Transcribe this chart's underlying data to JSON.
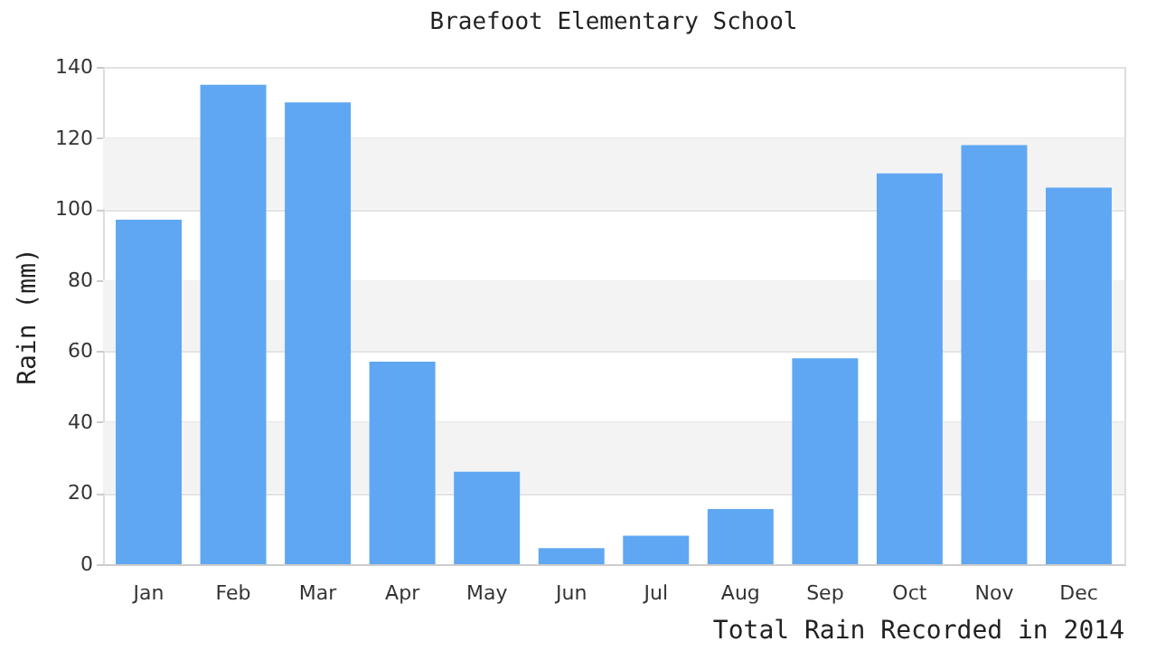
{
  "chart_data": {
    "type": "bar",
    "title": "Braefoot Elementary School",
    "ylabel": "Rain (mm)",
    "annotations": [
      "Total Rain Recorded in 2014"
    ],
    "categories": [
      "Jan",
      "Feb",
      "Mar",
      "Apr",
      "May",
      "Jun",
      "Jul",
      "Aug",
      "Sep",
      "Oct",
      "Nov",
      "Dec"
    ],
    "values": [
      97,
      135,
      130,
      57,
      26,
      4.5,
      8,
      15.5,
      58,
      110,
      118,
      106
    ],
    "color": "#5fa7f2",
    "ylim": [
      0,
      140
    ],
    "yticks": [
      0,
      20,
      40,
      60,
      80,
      100,
      120,
      140
    ],
    "grid": "y",
    "bands": [
      {
        "axis": "y",
        "from": 20,
        "to": 40,
        "color": "#f3f3f3"
      },
      {
        "axis": "y",
        "from": 60,
        "to": 80,
        "color": "#f3f3f3"
      },
      {
        "axis": "y",
        "from": 100,
        "to": 120,
        "color": "#f3f3f3"
      }
    ]
  }
}
